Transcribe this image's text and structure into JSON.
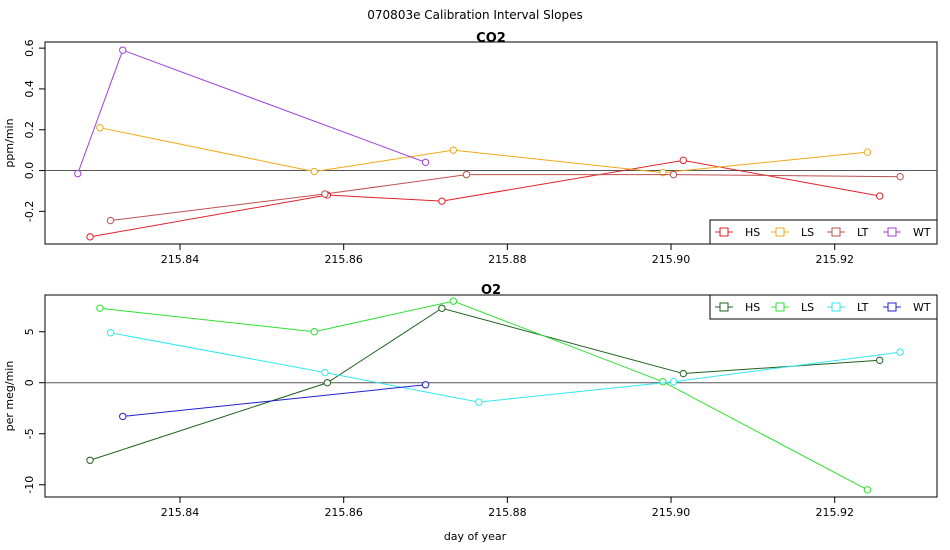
{
  "figure_title": "070803e   Calibration Interval Slopes",
  "chart_data": [
    {
      "type": "line",
      "title": "CO2",
      "xlabel": "",
      "ylabel": "ppm/min",
      "xlim": [
        215.8235,
        215.9325
      ],
      "ylim": [
        -0.36,
        0.63
      ],
      "xticks": [
        215.84,
        215.86,
        215.88,
        215.9,
        215.92
      ],
      "xtick_labels": [
        "215.84",
        "215.86",
        "215.88",
        "215.90",
        "215.92"
      ],
      "yticks": [
        -0.2,
        0.0,
        0.2,
        0.4,
        0.6
      ],
      "ytick_labels": [
        "-0.2",
        "0.0",
        "0.2",
        "0.4",
        "0.6"
      ],
      "reference_line": 0,
      "legend_position": "bottom-right",
      "series": [
        {
          "name": "HS",
          "color": "#e0202a",
          "x": [
            215.829,
            215.858,
            215.872,
            215.9015,
            215.9255
          ],
          "y": [
            -0.325,
            -0.12,
            -0.15,
            0.05,
            -0.125
          ]
        },
        {
          "name": "LS",
          "color": "#f2a818",
          "x": [
            215.8302,
            215.8564,
            215.8734,
            215.899,
            215.924
          ],
          "y": [
            0.21,
            -0.005,
            0.1,
            -0.01,
            0.09
          ]
        },
        {
          "name": "LT",
          "color": "#c0504d",
          "x": [
            215.8315,
            215.8577,
            215.875,
            215.9003,
            215.928
          ],
          "y": [
            -0.245,
            -0.115,
            -0.02,
            -0.02,
            -0.03
          ]
        },
        {
          "name": "WT",
          "color": "#a040e0",
          "x": [
            215.8275,
            215.833,
            215.87
          ],
          "y": [
            -0.015,
            0.59,
            0.04
          ]
        }
      ]
    },
    {
      "type": "line",
      "title": "O2",
      "xlabel": "day of year",
      "ylabel": "per meg/min",
      "xlim": [
        215.8235,
        215.9325
      ],
      "ylim": [
        -11.2,
        8.6
      ],
      "xticks": [
        215.84,
        215.86,
        215.88,
        215.9,
        215.92
      ],
      "xtick_labels": [
        "215.84",
        "215.86",
        "215.88",
        "215.90",
        "215.92"
      ],
      "yticks": [
        -10,
        -5,
        0,
        5
      ],
      "ytick_labels": [
        "-10",
        "-5",
        "0",
        "5"
      ],
      "reference_line": 0,
      "legend_position": "top-right",
      "series": [
        {
          "name": "HS",
          "color": "#206020",
          "x": [
            215.829,
            215.858,
            215.872,
            215.9015,
            215.9255
          ],
          "y": [
            -7.6,
            0.0,
            7.3,
            0.9,
            2.2
          ]
        },
        {
          "name": "LS",
          "color": "#30e030",
          "x": [
            215.8302,
            215.8564,
            215.8734,
            215.899,
            215.924
          ],
          "y": [
            7.3,
            5.0,
            8.0,
            0.1,
            -10.5
          ]
        },
        {
          "name": "LT",
          "color": "#30e8f0",
          "x": [
            215.8315,
            215.8577,
            215.8765,
            215.9003,
            215.928
          ],
          "y": [
            4.9,
            1.0,
            -1.9,
            0.1,
            3.0
          ]
        },
        {
          "name": "WT",
          "color": "#2020d0",
          "x": [
            215.833,
            215.87
          ],
          "y": [
            -3.3,
            -0.2
          ]
        }
      ]
    }
  ]
}
